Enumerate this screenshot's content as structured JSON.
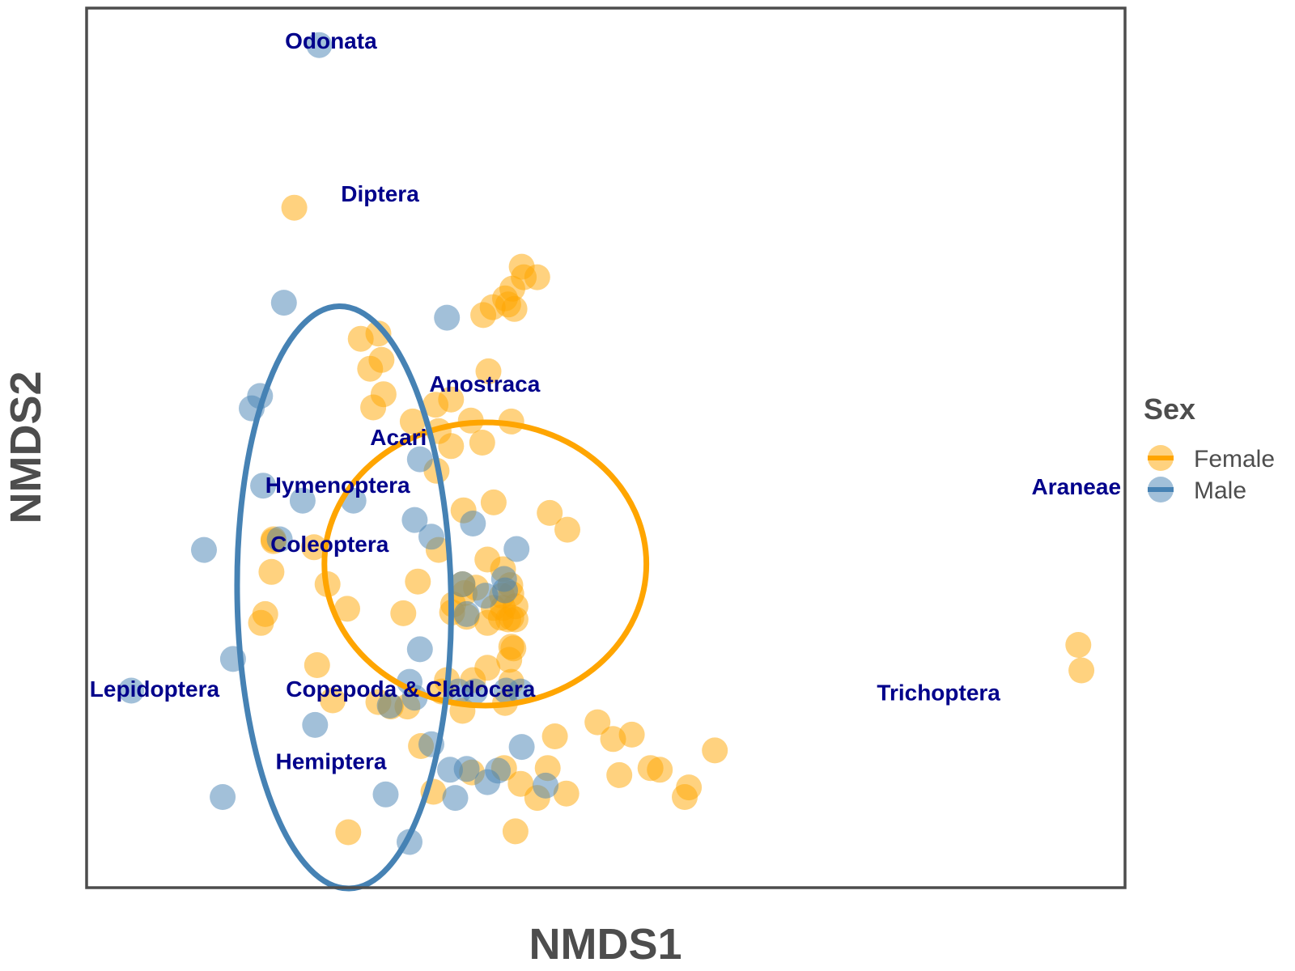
{
  "chart_data": {
    "type": "scatter",
    "title": "",
    "xlabel": "NMDS1",
    "ylabel": "NMDS2",
    "xlim": [
      0,
      100
    ],
    "ylim": [
      0,
      100
    ],
    "grid": false,
    "axis_ticks_shown": false,
    "legend": {
      "title": "Sex",
      "placement": "right",
      "entries": [
        "Female",
        "Male"
      ]
    },
    "colors": {
      "Female": "#ffa500",
      "Male": "#4682b4",
      "labels": "#00008b",
      "axis_text": "#4d4d4d"
    },
    "series": [
      {
        "name": "Female",
        "points": [
          [
            20.0,
            77.3
          ],
          [
            27.3,
            59.0
          ],
          [
            28.1,
            63.0
          ],
          [
            28.4,
            60.0
          ],
          [
            26.4,
            62.4
          ],
          [
            27.6,
            54.6
          ],
          [
            28.6,
            56.1
          ],
          [
            31.4,
            53.0
          ],
          [
            33.6,
            54.9
          ],
          [
            33.9,
            51.9
          ],
          [
            35.1,
            50.2
          ],
          [
            36.3,
            42.9
          ],
          [
            35.1,
            55.5
          ],
          [
            37.0,
            53.1
          ],
          [
            38.7,
            58.7
          ],
          [
            38.1,
            50.6
          ],
          [
            39.2,
            43.8
          ],
          [
            40.9,
            53.0
          ],
          [
            31.9,
            34.8
          ],
          [
            35.3,
            32.2
          ],
          [
            35.2,
            31.3
          ],
          [
            36.4,
            33.5
          ],
          [
            30.5,
            31.2
          ],
          [
            18.0,
            39.6
          ],
          [
            18.0,
            39.4
          ],
          [
            21.9,
            38.7
          ],
          [
            23.2,
            34.5
          ],
          [
            17.8,
            35.9
          ],
          [
            17.2,
            31.1
          ],
          [
            16.8,
            30.1
          ],
          [
            22.2,
            25.3
          ],
          [
            23.7,
            21.3
          ],
          [
            28.1,
            21.1
          ],
          [
            29.3,
            20.6
          ],
          [
            30.9,
            20.6
          ],
          [
            34.7,
            23.6
          ],
          [
            37.2,
            23.6
          ],
          [
            36.2,
            20.1
          ],
          [
            40.9,
            23.4
          ],
          [
            34.2,
            22.3
          ],
          [
            38.6,
            25.0
          ],
          [
            41.1,
            27.2
          ],
          [
            40.9,
            27.4
          ],
          [
            40.3,
            21.0
          ],
          [
            40.7,
            25.9
          ],
          [
            38.6,
            30.1
          ],
          [
            39.9,
            30.7
          ],
          [
            41.3,
            30.5
          ],
          [
            41.3,
            32.0
          ],
          [
            40.6,
            30.5
          ],
          [
            39.2,
            31.8
          ],
          [
            40.1,
            31.8
          ],
          [
            40.0,
            33.2
          ],
          [
            37.5,
            34.1
          ],
          [
            36.2,
            34.5
          ],
          [
            40.1,
            36.2
          ],
          [
            38.6,
            37.3
          ],
          [
            33.9,
            38.4
          ],
          [
            33.7,
            47.4
          ],
          [
            36.6,
            30.8
          ],
          [
            40.9,
            30.7
          ],
          [
            40.8,
            34.4
          ],
          [
            40.9,
            33.4
          ],
          [
            46.3,
            40.7
          ],
          [
            44.6,
            42.6
          ],
          [
            25.1,
            31.7
          ],
          [
            38.2,
            65.1
          ],
          [
            39.1,
            66.0
          ],
          [
            40.3,
            67.0
          ],
          [
            40.6,
            66.3
          ],
          [
            41.2,
            65.8
          ],
          [
            41.0,
            68.1
          ],
          [
            42.1,
            69.4
          ],
          [
            43.4,
            69.4
          ],
          [
            41.9,
            70.6
          ],
          [
            49.2,
            18.8
          ],
          [
            44.4,
            13.6
          ],
          [
            45.1,
            17.2
          ],
          [
            32.2,
            16.1
          ],
          [
            40.2,
            13.6
          ],
          [
            41.8,
            11.8
          ],
          [
            43.4,
            10.2
          ],
          [
            37.1,
            13.1
          ],
          [
            33.4,
            10.9
          ],
          [
            46.2,
            10.7
          ],
          [
            25.2,
            6.3
          ],
          [
            41.3,
            6.4
          ],
          [
            51.3,
            12.8
          ],
          [
            50.7,
            16.9
          ],
          [
            55.2,
            13.4
          ],
          [
            54.3,
            13.6
          ],
          [
            52.5,
            17.4
          ],
          [
            60.5,
            15.6
          ],
          [
            58.0,
            11.4
          ],
          [
            57.6,
            10.3
          ],
          [
            95.5,
            27.6
          ],
          [
            95.8,
            24.7
          ]
        ]
      },
      {
        "name": "Male",
        "points": [
          [
            22.4,
            95.8
          ],
          [
            19.0,
            66.5
          ],
          [
            34.7,
            64.8
          ],
          [
            15.9,
            54.5
          ],
          [
            16.7,
            55.9
          ],
          [
            32.1,
            48.7
          ],
          [
            17.0,
            45.7
          ],
          [
            20.8,
            44.0
          ],
          [
            25.7,
            44.0
          ],
          [
            31.6,
            41.8
          ],
          [
            37.2,
            41.4
          ],
          [
            11.3,
            38.4
          ],
          [
            18.6,
            39.6
          ],
          [
            41.4,
            38.5
          ],
          [
            40.3,
            33.8
          ],
          [
            36.6,
            31.1
          ],
          [
            33.2,
            39.9
          ],
          [
            38.4,
            33.2
          ],
          [
            36.2,
            34.5
          ],
          [
            40.2,
            35.1
          ],
          [
            32.1,
            27.1
          ],
          [
            14.1,
            26.0
          ],
          [
            4.3,
            22.4
          ],
          [
            29.2,
            20.7
          ],
          [
            31.1,
            23.4
          ],
          [
            31.6,
            21.6
          ],
          [
            35.8,
            22.3
          ],
          [
            37.4,
            22.3
          ],
          [
            40.4,
            22.4
          ],
          [
            41.8,
            22.3
          ],
          [
            22.0,
            18.5
          ],
          [
            33.2,
            16.3
          ],
          [
            35.0,
            13.4
          ],
          [
            36.6,
            13.5
          ],
          [
            39.6,
            13.3
          ],
          [
            41.9,
            16.0
          ],
          [
            44.2,
            11.6
          ],
          [
            13.1,
            10.3
          ],
          [
            31.1,
            5.2
          ],
          [
            28.8,
            10.6
          ],
          [
            35.5,
            10.2
          ],
          [
            38.6,
            12.0
          ]
        ]
      }
    ],
    "ellipses": [
      {
        "series": "Female",
        "center": [
          38.4,
          36.8
        ],
        "radii": [
          15.5,
          16.1
        ],
        "rotation_deg": 0
      },
      {
        "series": "Male",
        "center": [
          24.8,
          33.0
        ],
        "radii": [
          10.3,
          33.1
        ],
        "rotation_deg": -1
      }
    ],
    "annotations": [
      {
        "text": "Odonata",
        "x": 19.1,
        "y": 95.4
      },
      {
        "text": "Diptera",
        "x": 24.5,
        "y": 78.0
      },
      {
        "text": "Anostraca",
        "x": 33.0,
        "y": 56.4
      },
      {
        "text": "Acari",
        "x": 27.3,
        "y": 50.3
      },
      {
        "text": "Hymenoptera",
        "x": 17.2,
        "y": 44.9
      },
      {
        "text": "Coleoptera",
        "x": 17.7,
        "y": 38.2
      },
      {
        "text": "Lepidoptera",
        "x": 0.3,
        "y": 21.7
      },
      {
        "text": "Copepoda & Cladocera",
        "x": 19.2,
        "y": 21.7
      },
      {
        "text": "Hemiptera",
        "x": 18.2,
        "y": 13.5
      },
      {
        "text": "Araneae",
        "x": 91.0,
        "y": 44.7
      },
      {
        "text": "Trichoptera",
        "x": 76.1,
        "y": 21.3
      }
    ]
  }
}
